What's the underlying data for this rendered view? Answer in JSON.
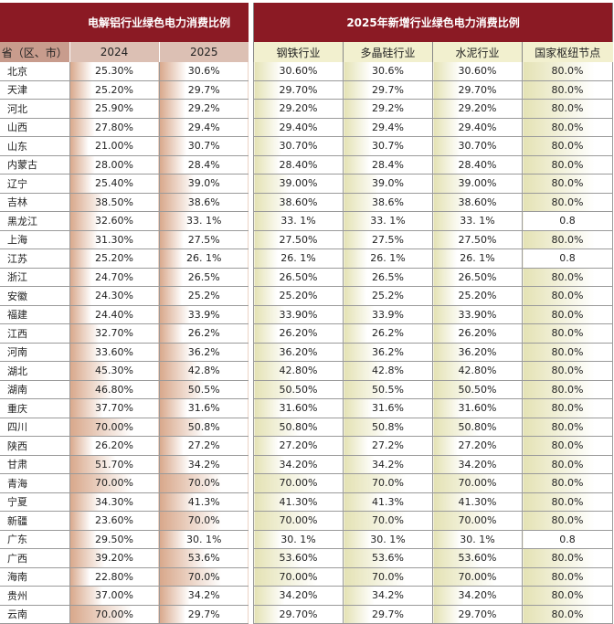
{
  "left": {
    "title": "电解铝行业绿色电力消费比例",
    "headers": [
      "省（区、市）",
      "2024",
      "2025"
    ]
  },
  "right": {
    "title": "2025年新增行业绿色电力消费比例",
    "headers": [
      "钢铁行业",
      "多晶硅行业",
      "水泥行业",
      "国家枢纽节点"
    ]
  },
  "colors": {
    "title_bg": "#8b1a24",
    "left_header_bg": "#dcc0b4",
    "right_header_bg": "#f2f0cf",
    "bar_left": "#d8a78a",
    "bar_right": "#e4e2b4"
  },
  "rows": [
    {
      "province": "北京",
      "v2024": "25.30%",
      "v2025": "30.6%",
      "steel": "30.60%",
      "silicon": "30.6%",
      "cement": "30.60%",
      "hub": "80.0%",
      "bars": [
        25.3,
        30.6,
        30.6,
        30.6,
        30.6,
        80.0
      ]
    },
    {
      "province": "天津",
      "v2024": "25.20%",
      "v2025": "29.7%",
      "steel": "29.70%",
      "silicon": "29.7%",
      "cement": "29.70%",
      "hub": "80.0%",
      "bars": [
        25.2,
        29.7,
        29.7,
        29.7,
        29.7,
        80.0
      ]
    },
    {
      "province": "河北",
      "v2024": "25.90%",
      "v2025": "29.2%",
      "steel": "29.20%",
      "silicon": "29.2%",
      "cement": "29.20%",
      "hub": "80.0%",
      "bars": [
        25.9,
        29.2,
        29.2,
        29.2,
        29.2,
        80.0
      ]
    },
    {
      "province": "山西",
      "v2024": "27.80%",
      "v2025": "29.4%",
      "steel": "29.40%",
      "silicon": "29.4%",
      "cement": "29.40%",
      "hub": "80.0%",
      "bars": [
        27.8,
        29.4,
        29.4,
        29.4,
        29.4,
        80.0
      ]
    },
    {
      "province": "山东",
      "v2024": "21.00%",
      "v2025": "30.7%",
      "steel": "30.70%",
      "silicon": "30.7%",
      "cement": "30.70%",
      "hub": "80.0%",
      "bars": [
        21.0,
        30.7,
        30.7,
        30.7,
        30.7,
        80.0
      ]
    },
    {
      "province": "内蒙古",
      "v2024": "28.00%",
      "v2025": "28.4%",
      "steel": "28.40%",
      "silicon": "28.4%",
      "cement": "28.40%",
      "hub": "80.0%",
      "bars": [
        28.0,
        28.4,
        28.4,
        28.4,
        28.4,
        80.0
      ]
    },
    {
      "province": "辽宁",
      "v2024": "25.40%",
      "v2025": "39.0%",
      "steel": "39.00%",
      "silicon": "39.0%",
      "cement": "39.00%",
      "hub": "80.0%",
      "bars": [
        25.4,
        39.0,
        39.0,
        39.0,
        39.0,
        80.0
      ]
    },
    {
      "province": "吉林",
      "v2024": "38.50%",
      "v2025": "38.6%",
      "steel": "38.60%",
      "silicon": "38.6%",
      "cement": "38.60%",
      "hub": "80.0%",
      "bars": [
        38.5,
        38.6,
        38.6,
        38.6,
        38.6,
        80.0
      ]
    },
    {
      "province": "黑龙江",
      "v2024": "32.60%",
      "v2025": "33. 1%",
      "steel": "33. 1%",
      "silicon": "33. 1%",
      "cement": "33. 1%",
      "hub": "0.8",
      "bars": [
        32.6,
        33.1,
        33.1,
        33.1,
        33.1,
        0.8
      ]
    },
    {
      "province": "上海",
      "v2024": "31.30%",
      "v2025": "27.5%",
      "steel": "27.50%",
      "silicon": "27.5%",
      "cement": "27.50%",
      "hub": "80.0%",
      "bars": [
        31.3,
        27.5,
        27.5,
        27.5,
        27.5,
        80.0
      ]
    },
    {
      "province": "江苏",
      "v2024": "25.20%",
      "v2025": "26. 1%",
      "steel": "26. 1%",
      "silicon": "26. 1%",
      "cement": "26. 1%",
      "hub": "0.8",
      "bars": [
        25.2,
        26.1,
        26.1,
        26.1,
        26.1,
        0.8
      ]
    },
    {
      "province": "浙江",
      "v2024": "24.70%",
      "v2025": "26.5%",
      "steel": "26.50%",
      "silicon": "26.5%",
      "cement": "26.50%",
      "hub": "80.0%",
      "bars": [
        24.7,
        26.5,
        26.5,
        26.5,
        26.5,
        80.0
      ]
    },
    {
      "province": "安徽",
      "v2024": "24.30%",
      "v2025": "25.2%",
      "steel": "25.20%",
      "silicon": "25.2%",
      "cement": "25.20%",
      "hub": "80.0%",
      "bars": [
        24.3,
        25.2,
        25.2,
        25.2,
        25.2,
        80.0
      ]
    },
    {
      "province": "福建",
      "v2024": "24.40%",
      "v2025": "33.9%",
      "steel": "33.90%",
      "silicon": "33.9%",
      "cement": "33.90%",
      "hub": "80.0%",
      "bars": [
        24.4,
        33.9,
        33.9,
        33.9,
        33.9,
        80.0
      ]
    },
    {
      "province": "江西",
      "v2024": "32.70%",
      "v2025": "26.2%",
      "steel": "26.20%",
      "silicon": "26.2%",
      "cement": "26.20%",
      "hub": "80.0%",
      "bars": [
        32.7,
        26.2,
        26.2,
        26.2,
        26.2,
        80.0
      ]
    },
    {
      "province": "河南",
      "v2024": "33.60%",
      "v2025": "36.2%",
      "steel": "36.20%",
      "silicon": "36.2%",
      "cement": "36.20%",
      "hub": "80.0%",
      "bars": [
        33.6,
        36.2,
        36.2,
        36.2,
        36.2,
        80.0
      ]
    },
    {
      "province": "湖北",
      "v2024": "45.30%",
      "v2025": "42.8%",
      "steel": "42.80%",
      "silicon": "42.8%",
      "cement": "42.80%",
      "hub": "80.0%",
      "bars": [
        45.3,
        42.8,
        42.8,
        42.8,
        42.8,
        80.0
      ]
    },
    {
      "province": "湖南",
      "v2024": "46.80%",
      "v2025": "50.5%",
      "steel": "50.50%",
      "silicon": "50.5%",
      "cement": "50.50%",
      "hub": "80.0%",
      "bars": [
        46.8,
        50.5,
        50.5,
        50.5,
        50.5,
        80.0
      ]
    },
    {
      "province": "重庆",
      "v2024": "37.70%",
      "v2025": "31.6%",
      "steel": "31.60%",
      "silicon": "31.6%",
      "cement": "31.60%",
      "hub": "80.0%",
      "bars": [
        37.7,
        31.6,
        31.6,
        31.6,
        31.6,
        80.0
      ]
    },
    {
      "province": "四川",
      "v2024": "70.00%",
      "v2025": "50.8%",
      "steel": "50.80%",
      "silicon": "50.8%",
      "cement": "50.80%",
      "hub": "80.0%",
      "bars": [
        70.0,
        50.8,
        50.8,
        50.8,
        50.8,
        80.0
      ]
    },
    {
      "province": "陕西",
      "v2024": "26.20%",
      "v2025": "27.2%",
      "steel": "27.20%",
      "silicon": "27.2%",
      "cement": "27.20%",
      "hub": "80.0%",
      "bars": [
        26.2,
        27.2,
        27.2,
        27.2,
        27.2,
        80.0
      ]
    },
    {
      "province": "甘肃",
      "v2024": "51.70%",
      "v2025": "34.2%",
      "steel": "34.20%",
      "silicon": "34.2%",
      "cement": "34.20%",
      "hub": "80.0%",
      "bars": [
        51.7,
        34.2,
        34.2,
        34.2,
        34.2,
        80.0
      ]
    },
    {
      "province": "青海",
      "v2024": "70.00%",
      "v2025": "70.0%",
      "steel": "70.00%",
      "silicon": "70.0%",
      "cement": "70.00%",
      "hub": "80.0%",
      "bars": [
        70.0,
        70.0,
        70.0,
        70.0,
        70.0,
        80.0
      ]
    },
    {
      "province": "宁夏",
      "v2024": "34.30%",
      "v2025": "41.3%",
      "steel": "41.30%",
      "silicon": "41.3%",
      "cement": "41.30%",
      "hub": "80.0%",
      "bars": [
        34.3,
        41.3,
        41.3,
        41.3,
        41.3,
        80.0
      ]
    },
    {
      "province": "新疆",
      "v2024": "23.60%",
      "v2025": "70.0%",
      "steel": "70.00%",
      "silicon": "70.0%",
      "cement": "70.00%",
      "hub": "80.0%",
      "bars": [
        23.6,
        70.0,
        70.0,
        70.0,
        70.0,
        80.0
      ]
    },
    {
      "province": "广东",
      "v2024": "29.50%",
      "v2025": "30. 1%",
      "steel": "30. 1%",
      "silicon": "30. 1%",
      "cement": "30. 1%",
      "hub": "0.8",
      "bars": [
        29.5,
        30.1,
        30.1,
        30.1,
        30.1,
        0.8
      ]
    },
    {
      "province": "广西",
      "v2024": "39.20%",
      "v2025": "53.6%",
      "steel": "53.60%",
      "silicon": "53.6%",
      "cement": "53.60%",
      "hub": "80.0%",
      "bars": [
        39.2,
        53.6,
        53.6,
        53.6,
        53.6,
        80.0
      ]
    },
    {
      "province": "海南",
      "v2024": "22.80%",
      "v2025": "70.0%",
      "steel": "70.00%",
      "silicon": "70.0%",
      "cement": "70.00%",
      "hub": "80.0%",
      "bars": [
        22.8,
        70.0,
        70.0,
        70.0,
        70.0,
        80.0
      ]
    },
    {
      "province": "贵州",
      "v2024": "37.00%",
      "v2025": "34.2%",
      "steel": "34.20%",
      "silicon": "34.2%",
      "cement": "34.20%",
      "hub": "80.0%",
      "bars": [
        37.0,
        34.2,
        34.2,
        34.2,
        34.2,
        80.0
      ]
    },
    {
      "province": "云南",
      "v2024": "70.00%",
      "v2025": "29.7%",
      "steel": "29.70%",
      "silicon": "29.7%",
      "cement": "29.70%",
      "hub": "80.0%",
      "bars": [
        70.0,
        29.7,
        29.7,
        29.7,
        29.7,
        80.0
      ]
    }
  ]
}
